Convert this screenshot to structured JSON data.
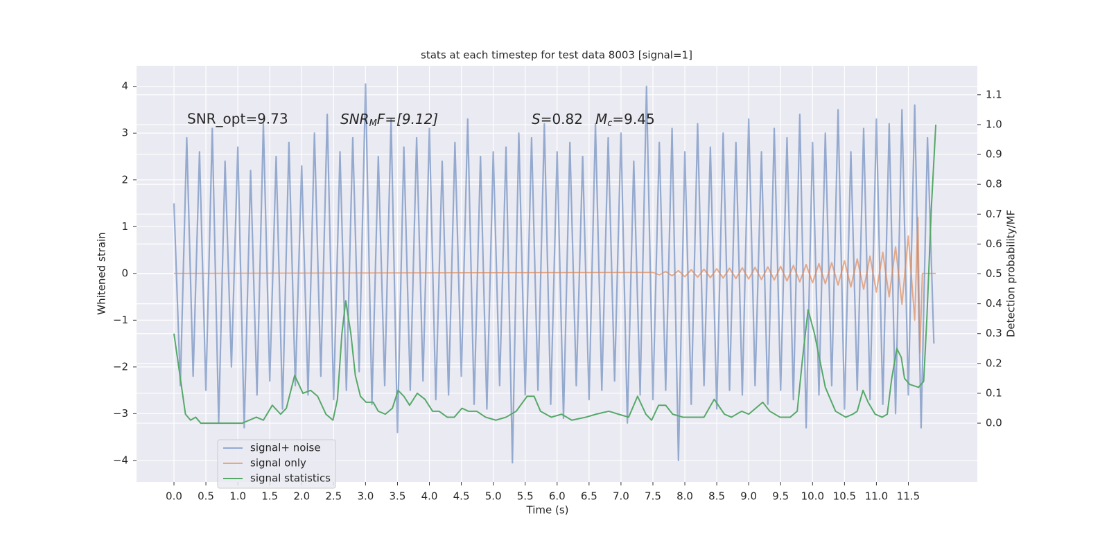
{
  "chart_data": {
    "type": "line",
    "title": "stats at each timestep for test data 8003 [signal=1]",
    "x_label": "Time (s)",
    "y_label": "Whitened strain",
    "y2_label": "Detection probability/MF",
    "annotations": [
      {
        "text": "SNR_opt=9.73"
      },
      {
        "parts": [
          "SNR",
          "M",
          "F=[9.12]"
        ]
      },
      {
        "parts": [
          "S",
          "=0.82"
        ]
      },
      {
        "parts": [
          "M",
          "c",
          "=9.45"
        ]
      }
    ],
    "xlim": [
      -0.586,
      12.58
    ],
    "ylim": [
      -4.46,
      4.44
    ],
    "y2lim": [
      -0.197,
      1.197
    ],
    "xticks": [
      {
        "value": 0,
        "label": "0.0"
      },
      0.5,
      {
        "value": 1,
        "label": "1.0"
      },
      1.5,
      {
        "value": 2,
        "label": "2.0"
      },
      2.5,
      {
        "value": 3,
        "label": "3.0"
      },
      3.5,
      {
        "value": 4,
        "label": "4.0"
      },
      4.5,
      {
        "value": 5,
        "label": "5.0"
      },
      5.5,
      {
        "value": 6,
        "label": "6.0"
      },
      6.5,
      {
        "value": 7,
        "label": "7.0"
      },
      7.5,
      {
        "value": 8,
        "label": "8.0"
      },
      8.5,
      {
        "value": 9,
        "label": "9.0"
      },
      9.5,
      {
        "value": 10,
        "label": "10.0"
      },
      10.5,
      {
        "value": 11,
        "label": "11.0"
      },
      11.5
    ],
    "yticks": [
      {
        "value": -4,
        "label": "−4"
      },
      {
        "value": -3,
        "label": "−3"
      },
      {
        "value": -2,
        "label": "−2"
      },
      {
        "value": -1,
        "label": "−1"
      },
      0,
      1,
      2,
      3,
      4
    ],
    "y2ticks": [
      {
        "value": 0,
        "label": "0.0"
      },
      0.1,
      0.2,
      0.3,
      0.4,
      0.5,
      0.6,
      0.7,
      0.8,
      0.9,
      {
        "value": 1,
        "label": "1.0"
      },
      1.1
    ],
    "grid": true,
    "legend_position": "lower left",
    "series": [
      {
        "name": "signal+ noise",
        "color": "#4c72b0",
        "x": [
          0,
          0.1,
          0.2,
          0.3,
          0.4,
          0.5,
          0.6,
          0.7,
          0.8,
          0.9,
          1,
          1.1,
          1.2,
          1.3,
          1.4,
          1.5,
          1.6,
          1.7,
          1.8,
          1.9,
          2,
          2.1,
          2.2,
          2.3,
          2.4,
          2.5,
          2.6,
          2.7,
          2.8,
          2.9,
          3,
          3.1,
          3.2,
          3.3,
          3.4,
          3.5,
          3.6,
          3.7,
          3.8,
          3.9,
          4,
          4.1,
          4.2,
          4.3,
          4.4,
          4.5,
          4.6,
          4.7,
          4.8,
          4.9,
          5,
          5.1,
          5.2,
          5.3,
          5.4,
          5.5,
          5.6,
          5.7,
          5.8,
          5.9,
          6,
          6.1,
          6.2,
          6.3,
          6.4,
          6.5,
          6.6,
          6.7,
          6.8,
          6.9,
          7,
          7.1,
          7.2,
          7.3,
          7.4,
          7.5,
          7.6,
          7.7,
          7.8,
          7.9,
          8,
          8.1,
          8.2,
          8.3,
          8.4,
          8.5,
          8.6,
          8.7,
          8.8,
          8.9,
          9,
          9.1,
          9.2,
          9.3,
          9.4,
          9.5,
          9.6,
          9.7,
          9.8,
          9.9,
          10,
          10.1,
          10.2,
          10.3,
          10.4,
          10.5,
          10.6,
          10.7,
          10.8,
          10.9,
          11,
          11.1,
          11.2,
          11.3,
          11.4,
          11.5,
          11.6,
          11.7,
          11.8,
          11.9
        ],
        "values": [
          1.5,
          -2.4,
          2.9,
          -2.2,
          2.6,
          -2.5,
          3.1,
          -3.2,
          2.4,
          -2.0,
          2.7,
          -3.3,
          2.2,
          -2.6,
          3.2,
          -2.3,
          2.5,
          -2.9,
          2.8,
          -2.4,
          2.3,
          -2.6,
          3.0,
          -2.2,
          3.4,
          -2.7,
          2.6,
          -2.5,
          2.9,
          -2.1,
          4.05,
          -2.8,
          2.5,
          -2.4,
          3.3,
          -3.4,
          2.7,
          -2.5,
          2.9,
          -2.3,
          3.1,
          -2.7,
          2.4,
          -2.6,
          2.8,
          -2.2,
          3.3,
          -2.8,
          2.5,
          -2.9,
          2.6,
          -2.4,
          2.7,
          -4.05,
          3.0,
          -2.6,
          2.9,
          -2.5,
          3.2,
          -2.8,
          2.6,
          -3.1,
          2.8,
          -2.4,
          2.5,
          -2.7,
          3.2,
          -2.5,
          2.9,
          -2.3,
          3.0,
          -3.2,
          2.4,
          -2.6,
          4.0,
          -2.7,
          2.8,
          -2.5,
          3.1,
          -4.0,
          2.6,
          -2.8,
          3.2,
          -2.4,
          2.7,
          -2.9,
          3.0,
          -2.5,
          2.8,
          -2.6,
          3.3,
          -2.4,
          2.6,
          -2.8,
          3.1,
          -2.5,
          2.9,
          -2.7,
          3.4,
          -3.3,
          2.8,
          -2.6,
          3.0,
          -2.4,
          3.5,
          -2.9,
          2.6,
          -2.5,
          3.1,
          -2.7,
          3.3,
          -2.8,
          3.2,
          -3.0,
          3.5,
          -2.6,
          3.6,
          -3.3,
          2.9,
          -1.5
        ]
      },
      {
        "name": "signal only",
        "color": "#dd8452",
        "x": [
          0,
          7.5,
          7.6,
          7.7,
          7.8,
          7.9,
          8,
          8.1,
          8.2,
          8.3,
          8.4,
          8.5,
          8.6,
          8.7,
          8.8,
          8.9,
          9,
          9.1,
          9.2,
          9.3,
          9.4,
          9.5,
          9.6,
          9.7,
          9.8,
          9.9,
          10,
          10.1,
          10.2,
          10.3,
          10.4,
          10.5,
          10.6,
          10.7,
          10.8,
          10.9,
          11,
          11.1,
          11.2,
          11.3,
          11.4,
          11.5,
          11.6,
          11.65,
          11.68,
          11.72,
          11.93
        ],
        "values": [
          0,
          0.02,
          -0.03,
          0.04,
          -0.05,
          0.06,
          -0.07,
          0.08,
          -0.08,
          0.09,
          -0.09,
          0.1,
          -0.1,
          0.11,
          -0.11,
          0.12,
          -0.12,
          0.13,
          -0.13,
          0.14,
          -0.14,
          0.15,
          -0.16,
          0.17,
          -0.18,
          0.19,
          -0.2,
          0.21,
          -0.22,
          0.23,
          -0.25,
          0.27,
          -0.29,
          0.31,
          -0.34,
          0.37,
          -0.4,
          0.45,
          -0.5,
          0.57,
          -0.66,
          0.8,
          -1.0,
          1.2,
          -1.7,
          0,
          0
        ]
      },
      {
        "name": "signal statistics",
        "color": "#55a868",
        "axis": "y2",
        "x": [
          0,
          0.12,
          0.18,
          0.26,
          0.34,
          0.42,
          0.53,
          0.75,
          1.07,
          1.18,
          1.29,
          1.4,
          1.54,
          1.67,
          1.76,
          1.89,
          2.02,
          2.14,
          2.25,
          2.38,
          2.49,
          2.56,
          2.63,
          2.69,
          2.77,
          2.84,
          2.92,
          3.01,
          3.12,
          3.2,
          3.31,
          3.42,
          3.51,
          3.6,
          3.69,
          3.81,
          3.93,
          4.05,
          4.15,
          4.28,
          4.39,
          4.51,
          4.61,
          4.74,
          4.88,
          5.04,
          5.2,
          5.36,
          5.53,
          5.64,
          5.74,
          5.91,
          6.07,
          6.23,
          6.45,
          6.61,
          6.81,
          6.96,
          7.12,
          7.26,
          7.39,
          7.48,
          7.59,
          7.7,
          7.81,
          7.97,
          8.13,
          8.3,
          8.46,
          8.62,
          8.73,
          8.89,
          9,
          9.11,
          9.22,
          9.33,
          9.49,
          9.65,
          9.76,
          9.84,
          9.93,
          10.03,
          10.2,
          10.36,
          10.52,
          10.63,
          10.7,
          10.79,
          10.87,
          10.98,
          11.09,
          11.17,
          11.24,
          11.32,
          11.39,
          11.44,
          11.52,
          11.66,
          11.74,
          11.79,
          11.86,
          11.93
        ],
        "values": [
          0.3,
          0.12,
          0.03,
          0.01,
          0.02,
          0,
          0,
          0,
          0,
          0.01,
          0.02,
          0.01,
          0.06,
          0.03,
          0.05,
          0.16,
          0.1,
          0.11,
          0.09,
          0.03,
          0.01,
          0.08,
          0.3,
          0.41,
          0.3,
          0.16,
          0.09,
          0.07,
          0.07,
          0.04,
          0.03,
          0.05,
          0.11,
          0.09,
          0.06,
          0.1,
          0.08,
          0.04,
          0.04,
          0.02,
          0.02,
          0.05,
          0.04,
          0.04,
          0.02,
          0.01,
          0.02,
          0.04,
          0.09,
          0.09,
          0.04,
          0.02,
          0.03,
          0.01,
          0.02,
          0.03,
          0.04,
          0.03,
          0.02,
          0.09,
          0.03,
          0.01,
          0.06,
          0.06,
          0.03,
          0.02,
          0.02,
          0.02,
          0.08,
          0.03,
          0.02,
          0.04,
          0.03,
          0.05,
          0.07,
          0.04,
          0.02,
          0.02,
          0.04,
          0.21,
          0.38,
          0.3,
          0.12,
          0.04,
          0.02,
          0.03,
          0.04,
          0.11,
          0.07,
          0.03,
          0.02,
          0.03,
          0.15,
          0.25,
          0.22,
          0.15,
          0.13,
          0.12,
          0.14,
          0.35,
          0.72,
          1.0
        ]
      }
    ]
  }
}
